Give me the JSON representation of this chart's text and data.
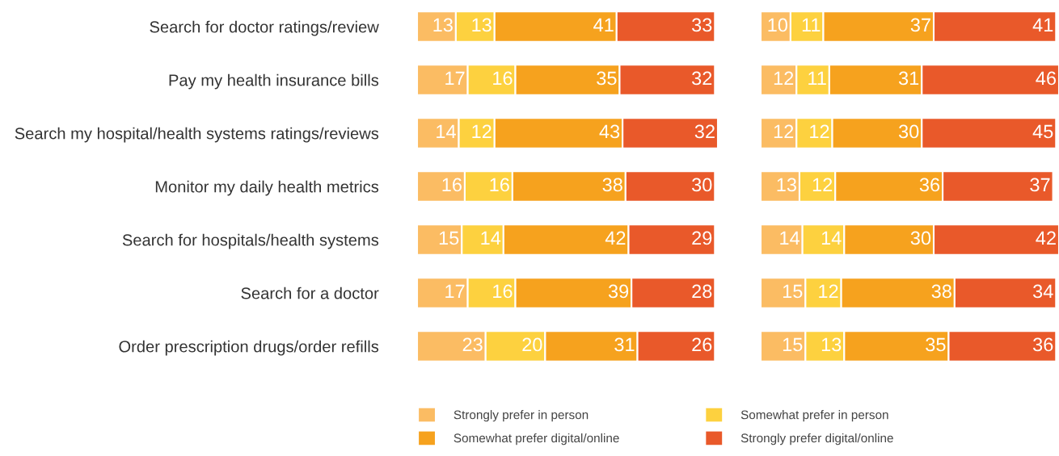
{
  "chart_data": [
    {
      "type": "bar",
      "orientation": "horizontal",
      "stacked": true,
      "data_labels": true,
      "legend": "bottom",
      "xlim": [
        0,
        101
      ],
      "tick_labels": "y",
      "categories": [
        "Search for doctor ratings/review",
        "Pay my health insurance bills",
        "Search my hospital/health systems ratings/reviews",
        "Monitor my daily health metrics",
        "Search for hospitals/health systems",
        "Search for a doctor",
        "Order prescription drugs/order refills"
      ],
      "series": [
        {
          "name": "Strongly prefer in person",
          "color": "#fbbc63",
          "values": [
            13,
            17,
            14,
            16,
            15,
            17,
            23
          ]
        },
        {
          "name": "Somewhat prefer in person",
          "color": "#fdd13f",
          "values": [
            13,
            16,
            12,
            16,
            14,
            16,
            20
          ]
        },
        {
          "name": "Somewhat prefer digital/online",
          "color": "#f6a21e",
          "values": [
            41,
            35,
            43,
            38,
            42,
            39,
            31
          ]
        },
        {
          "name": "Strongly prefer digital/online",
          "color": "#e9592a",
          "values": [
            33,
            32,
            32,
            30,
            29,
            28,
            26
          ]
        }
      ]
    },
    {
      "type": "bar",
      "orientation": "horizontal",
      "stacked": true,
      "data_labels": true,
      "xlim": [
        0,
        100
      ],
      "tick_labels": false,
      "categories": [
        null,
        null,
        null,
        null,
        null,
        null,
        null
      ],
      "series": [
        {
          "color": "#fbbc63",
          "values": [
            10,
            12,
            12,
            13,
            14,
            15,
            15
          ]
        },
        {
          "color": "#fdd13f",
          "values": [
            11,
            11,
            12,
            12,
            14,
            12,
            13
          ]
        },
        {
          "color": "#f6a21e",
          "values": [
            37,
            31,
            30,
            36,
            30,
            38,
            35
          ]
        },
        {
          "color": "#e9592a",
          "values": [
            41,
            46,
            45,
            37,
            42,
            34,
            36
          ]
        }
      ]
    }
  ]
}
